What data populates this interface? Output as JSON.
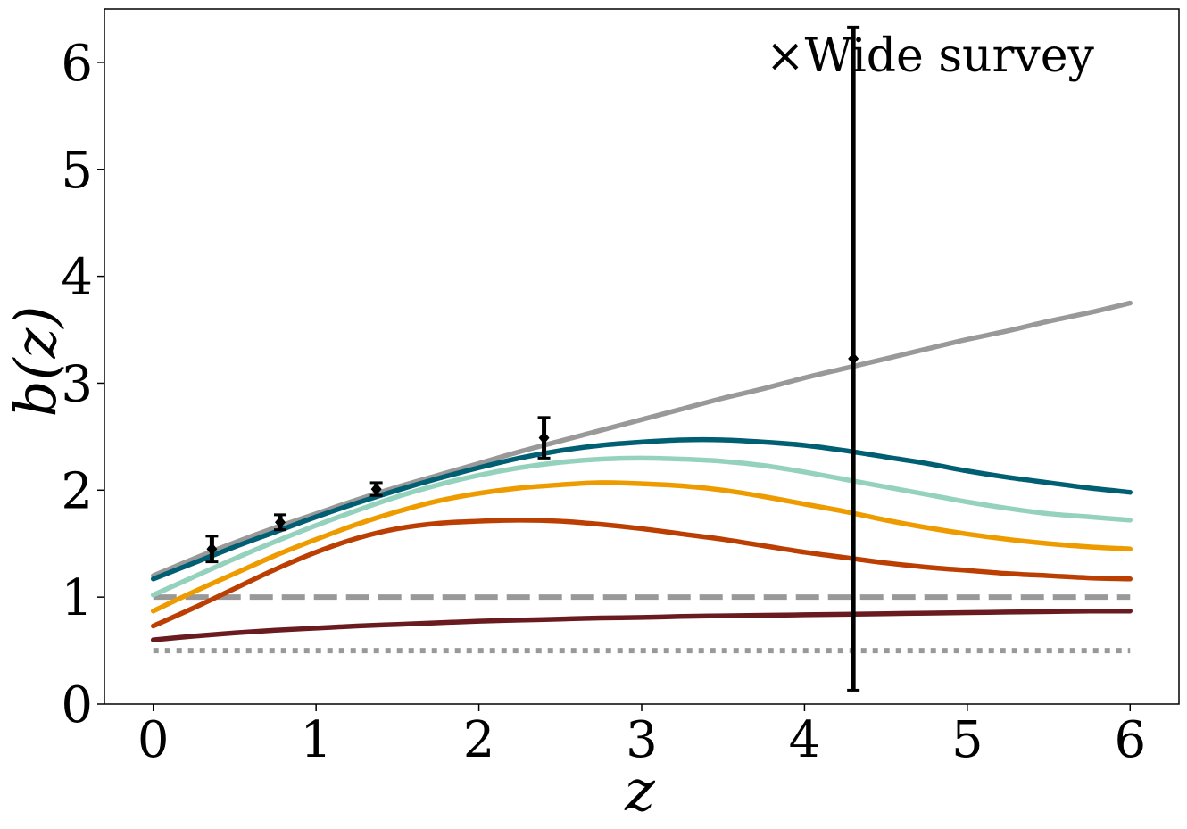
{
  "chart_data": {
    "type": "line",
    "xlabel": "z",
    "ylabel": "b(z)",
    "xlim": [
      -0.3,
      6.3
    ],
    "ylim": [
      0,
      6.5
    ],
    "x_ticks": [
      "0",
      "1",
      "2",
      "3",
      "4",
      "5",
      "6"
    ],
    "y_ticks": [
      "0",
      "1",
      "2",
      "3",
      "4",
      "5",
      "6"
    ],
    "grid": false,
    "annotation": "×Wide survey",
    "x": [
      0,
      0.25,
      0.5,
      0.75,
      1.0,
      1.25,
      1.5,
      1.75,
      2.0,
      2.25,
      2.5,
      2.75,
      3.0,
      3.25,
      3.5,
      3.75,
      4.0,
      4.25,
      4.5,
      4.75,
      5.0,
      5.25,
      5.5,
      5.75,
      6.0
    ],
    "series": [
      {
        "color": "#999999",
        "style": "solid",
        "values": [
          1.2,
          1.36,
          1.51,
          1.65,
          1.78,
          1.91,
          2.03,
          2.14,
          2.25,
          2.36,
          2.46,
          2.56,
          2.66,
          2.76,
          2.86,
          2.95,
          3.05,
          3.14,
          3.23,
          3.32,
          3.41,
          3.49,
          3.58,
          3.66,
          3.75
        ]
      },
      {
        "color": "#005f73",
        "style": "solid",
        "values": [
          1.17,
          1.32,
          1.47,
          1.61,
          1.75,
          1.88,
          2.0,
          2.11,
          2.21,
          2.3,
          2.37,
          2.42,
          2.45,
          2.47,
          2.47,
          2.45,
          2.42,
          2.37,
          2.31,
          2.25,
          2.18,
          2.12,
          2.07,
          2.02,
          1.98
        ]
      },
      {
        "color": "#94d2bd",
        "style": "solid",
        "values": [
          1.02,
          1.19,
          1.36,
          1.52,
          1.67,
          1.81,
          1.94,
          2.05,
          2.14,
          2.21,
          2.26,
          2.29,
          2.3,
          2.29,
          2.27,
          2.23,
          2.17,
          2.1,
          2.03,
          1.96,
          1.89,
          1.83,
          1.78,
          1.75,
          1.72
        ]
      },
      {
        "color": "#ee9b00",
        "style": "solid",
        "values": [
          0.87,
          1.05,
          1.22,
          1.39,
          1.54,
          1.68,
          1.8,
          1.9,
          1.97,
          2.02,
          2.05,
          2.07,
          2.06,
          2.04,
          2.0,
          1.94,
          1.87,
          1.8,
          1.72,
          1.65,
          1.59,
          1.54,
          1.5,
          1.47,
          1.45
        ]
      },
      {
        "color": "#bb3e03",
        "style": "solid",
        "values": [
          0.73,
          0.9,
          1.08,
          1.26,
          1.42,
          1.55,
          1.64,
          1.69,
          1.71,
          1.72,
          1.71,
          1.68,
          1.64,
          1.59,
          1.54,
          1.48,
          1.42,
          1.37,
          1.32,
          1.28,
          1.25,
          1.22,
          1.2,
          1.18,
          1.17
        ]
      },
      {
        "color": "#6a1b1f",
        "style": "solid",
        "values": [
          0.6,
          0.635,
          0.665,
          0.69,
          0.71,
          0.73,
          0.745,
          0.76,
          0.775,
          0.785,
          0.795,
          0.805,
          0.81,
          0.82,
          0.825,
          0.83,
          0.835,
          0.84,
          0.845,
          0.85,
          0.855,
          0.86,
          0.865,
          0.87,
          0.87
        ]
      }
    ],
    "reference_lines": [
      {
        "y": 1.0,
        "color": "#999999",
        "style": "dashed"
      },
      {
        "y": 0.5,
        "color": "#999999",
        "style": "dotted"
      }
    ],
    "points": [
      {
        "x": 0.36,
        "y": 1.45,
        "yerr": 0.12
      },
      {
        "x": 0.78,
        "y": 1.7,
        "yerr": 0.07
      },
      {
        "x": 1.37,
        "y": 2.01,
        "yerr": 0.06
      },
      {
        "x": 2.4,
        "y": 2.49,
        "yerr": 0.19
      },
      {
        "x": 4.3,
        "y": 3.23,
        "yerr": 3.1
      }
    ]
  }
}
